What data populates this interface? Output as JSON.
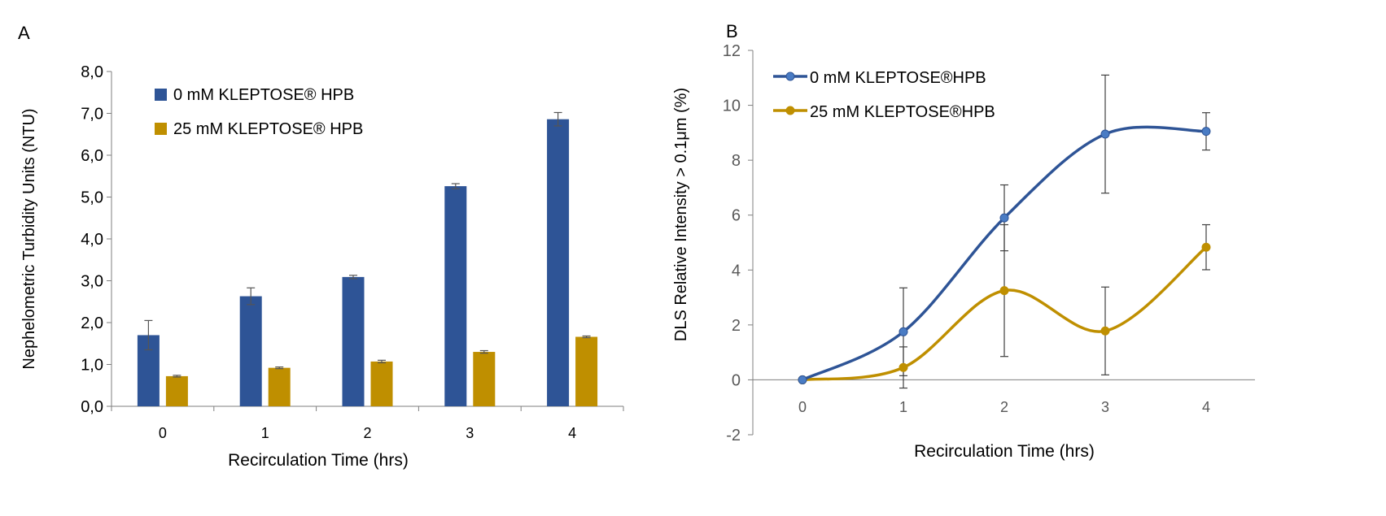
{
  "panels": {
    "a_label": "A",
    "b_label": "B"
  },
  "chart_data": [
    {
      "type": "bar",
      "categories": [
        "0",
        "1",
        "2",
        "3",
        "4"
      ],
      "series": [
        {
          "name": "0 mM KLEPTOSE® HPB",
          "values": [
            1.7,
            2.63,
            3.09,
            5.26,
            6.86
          ],
          "errors": [
            0.35,
            0.2,
            0.04,
            0.06,
            0.16
          ],
          "color": "#2e5496"
        },
        {
          "name": "25 mM KLEPTOSE® HPB",
          "values": [
            0.72,
            0.92,
            1.07,
            1.3,
            1.66
          ],
          "errors": [
            0.02,
            0.02,
            0.03,
            0.03,
            0.02
          ],
          "color": "#bf8f00"
        }
      ],
      "xlabel": "Recirculation Time (hrs)",
      "ylabel": "Nephelometric Turbidity Units (NTU)",
      "ylim": [
        0,
        8
      ],
      "yticks": [
        "0,0",
        "1,0",
        "2,0",
        "3,0",
        "4,0",
        "5,0",
        "6,0",
        "7,0",
        "8,0"
      ],
      "grid": false,
      "legend": "top-left"
    },
    {
      "type": "line",
      "x": [
        0,
        1,
        2,
        3,
        4
      ],
      "series": [
        {
          "name": "0 mM KLEPTOSE®HPB",
          "values": [
            0,
            1.75,
            5.9,
            8.95,
            9.05
          ],
          "errors": [
            0,
            1.6,
            1.2,
            2.15,
            0.68
          ],
          "color": "#2e5496",
          "marker_color": "#4a7cc4"
        },
        {
          "name": "25 mM KLEPTOSE®HPB",
          "values": [
            0,
            0.45,
            3.25,
            1.78,
            4.83
          ],
          "errors": [
            0,
            0.75,
            2.4,
            1.6,
            0.82
          ],
          "color": "#bf8f00",
          "marker_color": "#bf8f00"
        }
      ],
      "xlabel": "Recirculation Time (hrs)",
      "ylabel": "DLS Relative Intensity  > 0.1μm (%)",
      "xticks": [
        "0",
        "1",
        "2",
        "3",
        "4"
      ],
      "ylim": [
        -2,
        12
      ],
      "yticks": [
        "-2",
        "0",
        "2",
        "4",
        "6",
        "8",
        "10",
        "12"
      ],
      "grid": false,
      "smooth": true,
      "legend": "top-left"
    }
  ]
}
